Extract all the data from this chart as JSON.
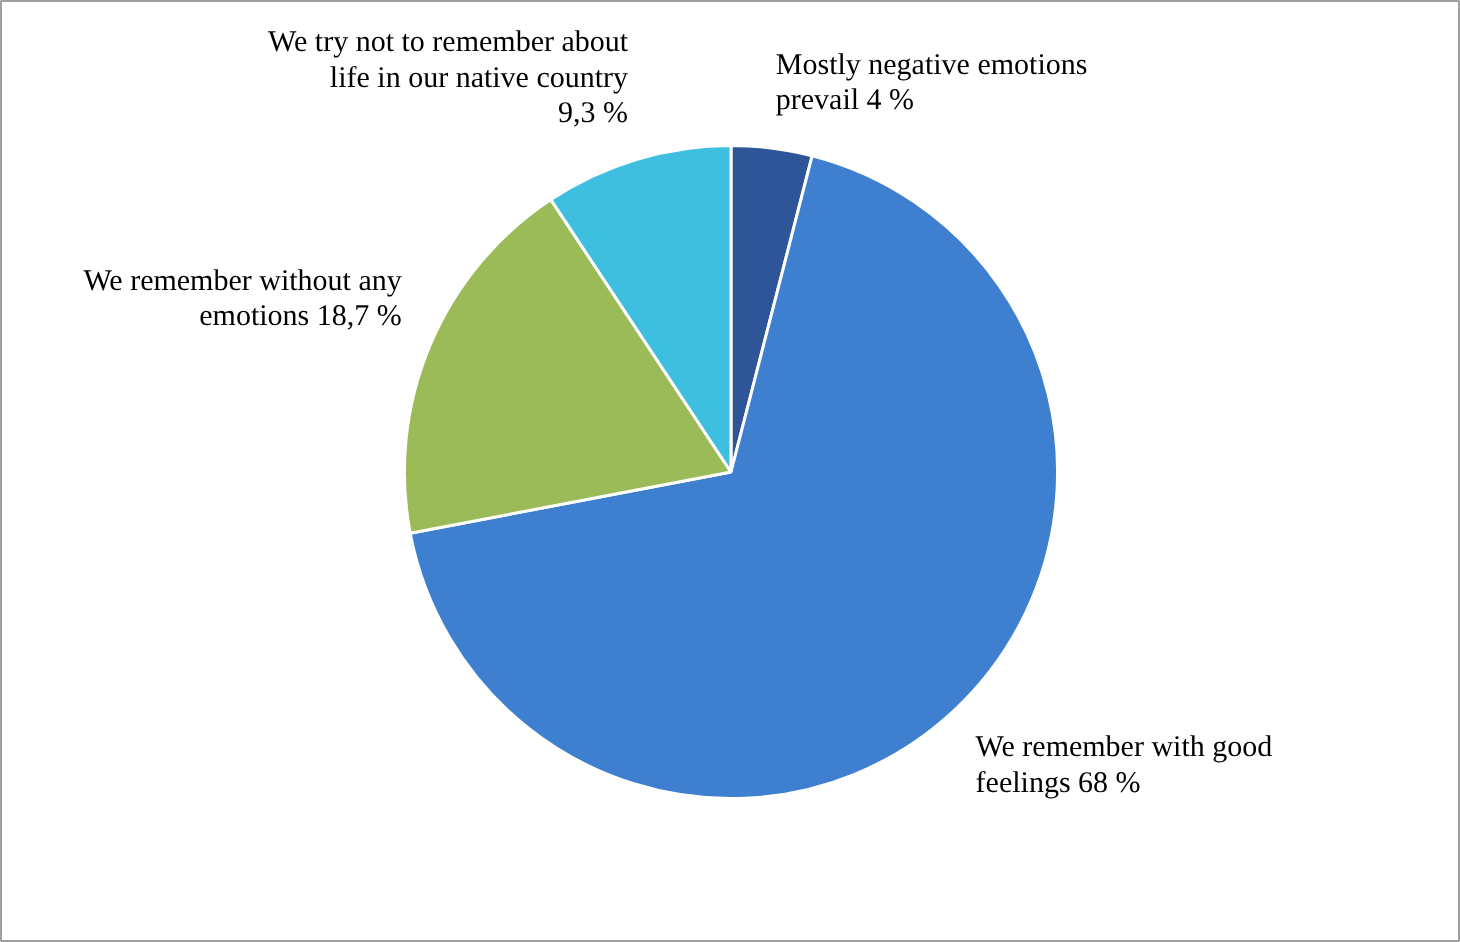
{
  "chart_data": {
    "type": "pie",
    "categories": [
      "Mostly negative emotions prevail",
      "We remember with good feelings",
      "We remember without any emotions",
      "We try not to remember about life in our native country"
    ],
    "values": [
      4,
      68,
      18.7,
      9.3
    ],
    "value_labels": [
      "4 %",
      "68 %",
      "18,7 %",
      "9,3 %"
    ],
    "colors": [
      "#2e5597",
      "#3f7fcf",
      "#9bbb59",
      "#3fbfe0"
    ]
  }
}
